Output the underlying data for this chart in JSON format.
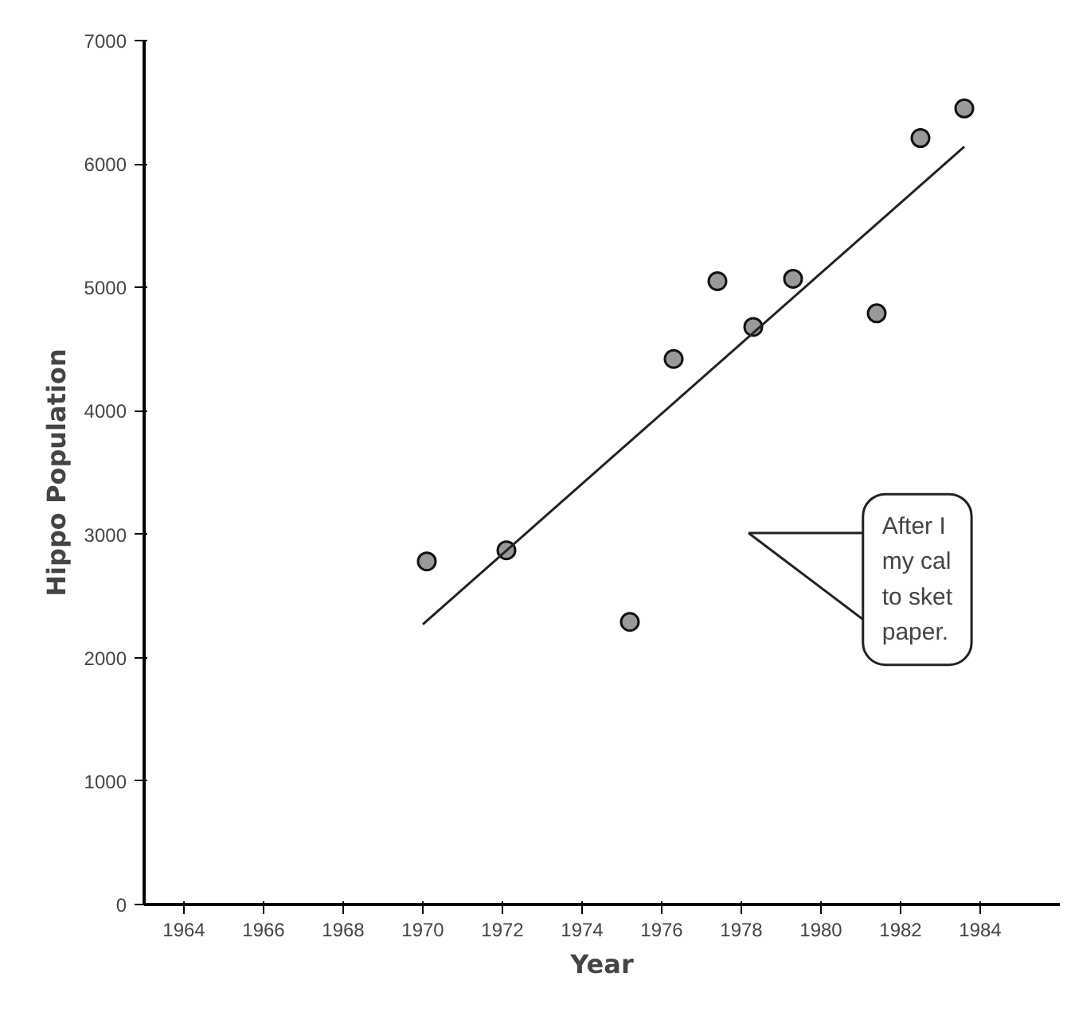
{
  "chart_data": {
    "type": "scatter",
    "xlabel": "Year",
    "ylabel": "Hippo Population",
    "xlim": [
      1963,
      1986
    ],
    "ylim": [
      0,
      7000
    ],
    "xticks": [
      1964,
      1966,
      1968,
      1970,
      1972,
      1974,
      1976,
      1978,
      1980,
      1982,
      1984
    ],
    "yticks": [
      0,
      1000,
      2000,
      3000,
      4000,
      5000,
      6000,
      7000
    ],
    "grid": false,
    "series": [
      {
        "marker": "circle",
        "color": "#555555",
        "x": [
          1970.1,
          1972.1,
          1975.2,
          1976.3,
          1977.4,
          1978.3,
          1979.3,
          1981.4,
          1982.5,
          1983.6
        ],
        "values": [
          2780,
          2870,
          2290,
          4420,
          5050,
          4680,
          5070,
          4790,
          6210,
          6450
        ]
      },
      {
        "type": "line",
        "marker": "none",
        "color": "#222222",
        "x": [
          1970.0,
          1983.6
        ],
        "values": [
          2270,
          6140
        ]
      }
    ],
    "annotations": [
      "After I\nmy cal\nto sket\npaper."
    ]
  }
}
